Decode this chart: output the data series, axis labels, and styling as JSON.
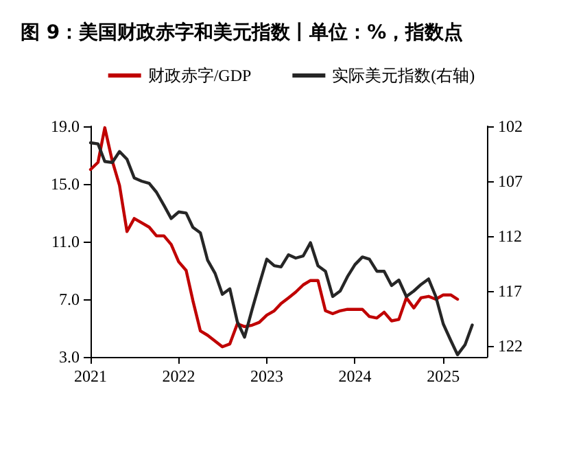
{
  "chart_data": {
    "type": "line",
    "title": "图 9：美国财政赤字和美元指数丨单位：%，指数点",
    "xlim": [
      "2021-01",
      "2025-07"
    ],
    "xticks": [
      "2021",
      "2022",
      "2023",
      "2024",
      "2025"
    ],
    "ylim": [
      3,
      19
    ],
    "yticks": [
      {
        "value": 3,
        "label": "3.0"
      },
      {
        "value": 7,
        "label": "7.0"
      },
      {
        "value": 11,
        "label": "11.0"
      },
      {
        "value": 15,
        "label": "15.0"
      },
      {
        "value": 19,
        "label": "19.0"
      }
    ],
    "y2lim": [
      123,
      102
    ],
    "y2ticks": [
      102,
      107,
      112,
      117,
      122
    ],
    "legend": "top",
    "grid": false,
    "marker": "none",
    "line_style": "solid",
    "series": [
      {
        "name": "财政赤字/GDP",
        "color": "#c00000",
        "x": [
          "2021-01",
          "2021-02",
          "2021-03",
          "2021-04",
          "2021-05",
          "2021-06",
          "2021-07",
          "2021-08",
          "2021-09",
          "2021-10",
          "2021-11",
          "2021-12",
          "2022-01",
          "2022-02",
          "2022-03",
          "2022-04",
          "2022-05",
          "2022-06",
          "2022-07",
          "2022-08",
          "2022-09",
          "2022-10",
          "2022-11",
          "2022-12",
          "2023-01",
          "2023-02",
          "2023-03",
          "2023-04",
          "2023-05",
          "2023-06",
          "2023-07",
          "2023-08",
          "2023-09",
          "2023-10",
          "2023-11",
          "2023-12",
          "2024-01",
          "2024-02",
          "2024-03",
          "2024-04",
          "2024-05",
          "2024-06",
          "2024-07",
          "2024-08",
          "2024-09",
          "2024-10",
          "2024-11",
          "2024-12",
          "2025-01",
          "2025-02",
          "2025-03"
        ],
        "values": [
          16.0,
          16.5,
          18.9,
          16.6,
          14.9,
          11.7,
          12.6,
          12.3,
          12.0,
          11.4,
          11.4,
          10.8,
          9.6,
          9.0,
          6.9,
          4.8,
          4.5,
          4.1,
          3.7,
          3.9,
          5.3,
          5.1,
          5.2,
          5.4,
          5.9,
          6.2,
          6.7,
          7.1,
          7.5,
          8.0,
          8.3,
          8.3,
          6.2,
          6.0,
          6.2,
          6.3,
          6.3,
          6.3,
          5.8,
          5.7,
          6.1,
          5.5,
          5.6,
          7.1,
          6.4,
          7.1,
          7.2,
          7.0,
          7.3,
          7.3,
          7.0
        ]
      },
      {
        "name": "实际美元指数(右轴)",
        "color": "#262626",
        "axis": "y2",
        "x": [
          "2021-01",
          "2021-02",
          "2021-03",
          "2021-04",
          "2021-05",
          "2021-06",
          "2021-07",
          "2021-08",
          "2021-09",
          "2021-10",
          "2021-11",
          "2021-12",
          "2022-01",
          "2022-02",
          "2022-03",
          "2022-04",
          "2022-05",
          "2022-06",
          "2022-07",
          "2022-08",
          "2022-09",
          "2022-10",
          "2022-11",
          "2022-12",
          "2023-01",
          "2023-02",
          "2023-03",
          "2023-04",
          "2023-05",
          "2023-06",
          "2023-07",
          "2023-08",
          "2023-09",
          "2023-10",
          "2023-11",
          "2023-12",
          "2024-01",
          "2024-02",
          "2024-03",
          "2024-04",
          "2024-05",
          "2024-06",
          "2024-07",
          "2024-08",
          "2024-09",
          "2024-10",
          "2024-11",
          "2024-12",
          "2025-01",
          "2025-02",
          "2025-03",
          "2025-04",
          "2025-05"
        ],
        "values": [
          103.5,
          103.6,
          105.2,
          105.3,
          104.3,
          105.0,
          106.7,
          107.0,
          107.2,
          108.0,
          109.2,
          110.4,
          109.8,
          109.9,
          111.2,
          111.7,
          114.2,
          115.4,
          117.3,
          116.8,
          119.8,
          121.2,
          118.7,
          116.4,
          114.1,
          114.7,
          114.8,
          113.7,
          114.0,
          113.8,
          112.6,
          114.7,
          115.2,
          117.5,
          117.0,
          115.7,
          114.6,
          113.9,
          114.1,
          115.2,
          115.2,
          116.5,
          116.0,
          117.5,
          117.0,
          116.4,
          115.9,
          117.5,
          120.0,
          121.5,
          122.8,
          121.9,
          120.1
        ]
      }
    ]
  }
}
